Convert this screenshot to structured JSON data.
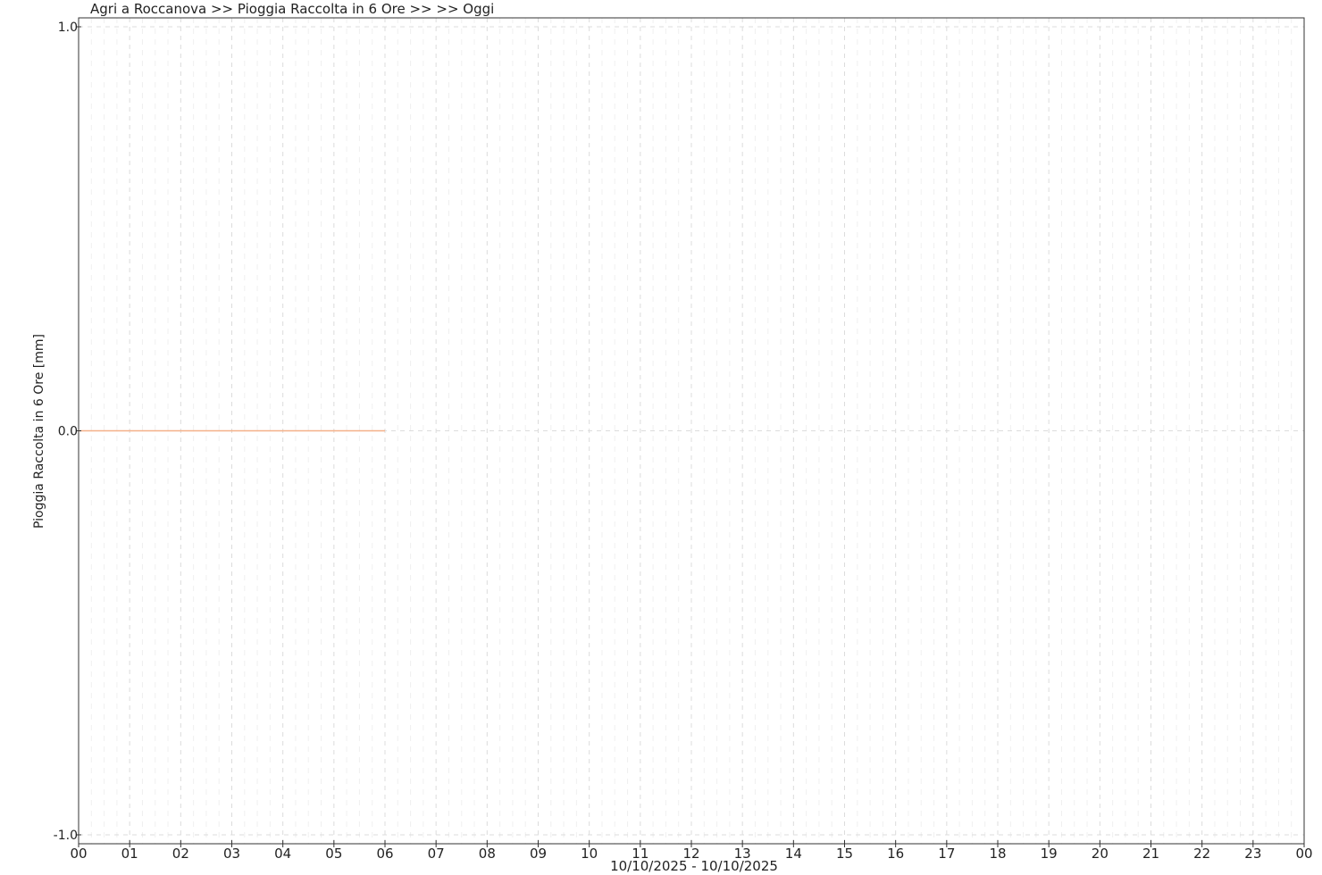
{
  "chart_data": {
    "type": "line",
    "title": "Agri a Roccanova >> Pioggia Raccolta in 6 Ore >>  >> Oggi",
    "xlabel": "10/10/2025 - 10/10/2025",
    "ylabel": "Pioggia Raccolta in 6 Ore [mm]",
    "ylim": [
      -1.0,
      1.0
    ],
    "yticks": [
      "1.0",
      "0.0",
      "-1.0"
    ],
    "xlim_hours": [
      0,
      24
    ],
    "xticks": [
      "00",
      "01",
      "02",
      "03",
      "04",
      "05",
      "06",
      "07",
      "08",
      "09",
      "10",
      "11",
      "12",
      "13",
      "14",
      "15",
      "16",
      "17",
      "18",
      "19",
      "20",
      "21",
      "22",
      "23",
      "00"
    ],
    "grid": true,
    "legend": "none",
    "series": [
      {
        "color": "#f4b088",
        "x": [
          "00:00",
          "00:15",
          "00:30",
          "00:45",
          "01:00",
          "01:15",
          "01:30",
          "01:45",
          "02:00",
          "02:15",
          "02:30",
          "02:45",
          "03:00",
          "03:15",
          "03:30",
          "03:45",
          "04:00",
          "04:15",
          "04:30",
          "04:45",
          "05:00",
          "05:15",
          "05:30",
          "05:45"
        ],
        "values": [
          0,
          0,
          0,
          0,
          0,
          0,
          0,
          0,
          0,
          0,
          0,
          0,
          0,
          0,
          0,
          0,
          0,
          0,
          0,
          0,
          0,
          0,
          0,
          0
        ]
      }
    ]
  }
}
